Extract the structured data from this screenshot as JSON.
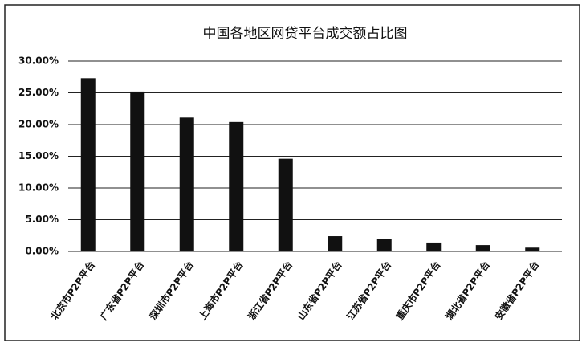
{
  "chart_data": {
    "type": "bar",
    "title": "中国各地区网贷平台成交额占比图",
    "categories": [
      "北京市P2P平台",
      "广东省P2P平台",
      "深圳市P2P平台",
      "上海市P2P平台",
      "浙江省P2P平台",
      "山东省P2P平台",
      "江苏省P2P平台",
      "重庆市P2P平台",
      "湖北省P2P平台",
      "安徽省P2P平台"
    ],
    "values": [
      27.3,
      25.2,
      21.1,
      20.4,
      14.6,
      2.4,
      2.0,
      1.4,
      1.0,
      0.6
    ],
    "color": "#111111",
    "ylim": [
      0,
      30
    ],
    "yticks": [
      {
        "value": 0,
        "label": "0.00%"
      },
      {
        "value": 5,
        "label": "5.00%"
      },
      {
        "value": 10,
        "label": "10.00%"
      },
      {
        "value": 15,
        "label": "15.00%"
      },
      {
        "value": 20,
        "label": "20.00%"
      },
      {
        "value": 25,
        "label": "25.00%"
      },
      {
        "value": 30,
        "label": "30.00%"
      }
    ],
    "grid": true
  }
}
